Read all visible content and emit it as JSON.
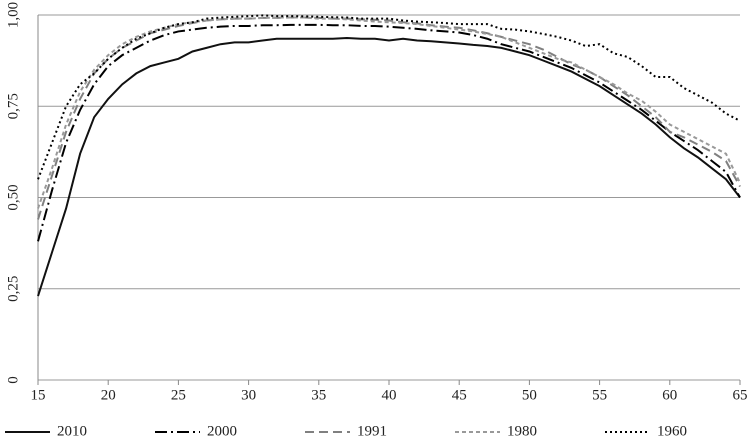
{
  "chart_data": {
    "type": "line",
    "x": [
      15,
      16,
      17,
      18,
      19,
      20,
      21,
      22,
      23,
      24,
      25,
      26,
      27,
      28,
      29,
      30,
      31,
      32,
      33,
      34,
      35,
      36,
      37,
      38,
      39,
      40,
      41,
      42,
      43,
      44,
      45,
      46,
      47,
      48,
      49,
      50,
      51,
      52,
      53,
      54,
      55,
      56,
      57,
      58,
      59,
      60,
      61,
      62,
      63,
      64,
      65
    ],
    "xlim": [
      15,
      65
    ],
    "xticks": [
      15,
      20,
      25,
      30,
      35,
      40,
      45,
      50,
      55,
      60,
      65
    ],
    "ylim": [
      0,
      1
    ],
    "yticks": [
      0,
      {
        "value": 0.25,
        "label": "0,25"
      },
      {
        "value": 0.5,
        "label": "0,50"
      },
      {
        "value": 0.75,
        "label": "0,75"
      },
      {
        "value": 1,
        "label": "1,00"
      }
    ],
    "grid": true,
    "legend": "bottom",
    "series": [
      {
        "name": "2010",
        "color": "#111111",
        "style": "solid",
        "values": [
          0.23,
          0.35,
          0.47,
          0.62,
          0.72,
          0.77,
          0.81,
          0.84,
          0.86,
          0.87,
          0.88,
          0.9,
          0.91,
          0.92,
          0.925,
          0.925,
          0.93,
          0.935,
          0.935,
          0.935,
          0.935,
          0.935,
          0.937,
          0.935,
          0.935,
          0.93,
          0.935,
          0.93,
          0.928,
          0.925,
          0.922,
          0.918,
          0.915,
          0.91,
          0.9,
          0.89,
          0.875,
          0.86,
          0.845,
          0.825,
          0.805,
          0.78,
          0.755,
          0.73,
          0.7,
          0.665,
          0.635,
          0.61,
          0.58,
          0.55,
          0.5
        ]
      },
      {
        "name": "2000",
        "color": "#000000",
        "style": "dash-dot",
        "values": [
          0.38,
          0.52,
          0.65,
          0.74,
          0.81,
          0.86,
          0.89,
          0.91,
          0.93,
          0.945,
          0.955,
          0.96,
          0.965,
          0.968,
          0.97,
          0.97,
          0.972,
          0.972,
          0.973,
          0.973,
          0.973,
          0.972,
          0.972,
          0.97,
          0.97,
          0.968,
          0.965,
          0.962,
          0.958,
          0.955,
          0.952,
          0.945,
          0.935,
          0.92,
          0.91,
          0.9,
          0.885,
          0.87,
          0.855,
          0.835,
          0.815,
          0.79,
          0.765,
          0.74,
          0.71,
          0.68,
          0.655,
          0.63,
          0.6,
          0.57,
          0.5
        ]
      },
      {
        "name": "1991",
        "color": "#808080",
        "style": "dash",
        "values": [
          0.44,
          0.56,
          0.68,
          0.77,
          0.84,
          0.88,
          0.91,
          0.93,
          0.95,
          0.96,
          0.97,
          0.978,
          0.985,
          0.988,
          0.99,
          0.99,
          0.992,
          0.992,
          0.993,
          0.993,
          0.992,
          0.99,
          0.99,
          0.988,
          0.987,
          0.985,
          0.98,
          0.977,
          0.972,
          0.968,
          0.965,
          0.958,
          0.95,
          0.94,
          0.93,
          0.92,
          0.905,
          0.885,
          0.865,
          0.85,
          0.83,
          0.805,
          0.78,
          0.75,
          0.72,
          0.68,
          0.665,
          0.645,
          0.625,
          0.6,
          0.53
        ]
      },
      {
        "name": "1980",
        "color": "#999999",
        "style": "short-dash",
        "values": [
          0.47,
          0.58,
          0.7,
          0.79,
          0.85,
          0.89,
          0.92,
          0.94,
          0.955,
          0.965,
          0.975,
          0.98,
          0.985,
          0.988,
          0.99,
          0.99,
          0.992,
          0.993,
          0.993,
          0.993,
          0.99,
          0.99,
          0.988,
          0.985,
          0.982,
          0.98,
          0.978,
          0.975,
          0.97,
          0.965,
          0.96,
          0.955,
          0.948,
          0.94,
          0.925,
          0.91,
          0.895,
          0.88,
          0.87,
          0.85,
          0.83,
          0.81,
          0.785,
          0.765,
          0.735,
          0.7,
          0.68,
          0.66,
          0.64,
          0.62,
          0.54
        ]
      },
      {
        "name": "1960",
        "color": "#000000",
        "style": "dot",
        "values": [
          0.55,
          0.65,
          0.75,
          0.81,
          0.84,
          0.88,
          0.91,
          0.935,
          0.95,
          0.965,
          0.975,
          0.98,
          0.99,
          0.993,
          0.995,
          0.997,
          0.999,
          0.997,
          0.997,
          0.996,
          0.995,
          0.994,
          0.993,
          0.99,
          0.99,
          0.99,
          0.985,
          0.982,
          0.98,
          0.978,
          0.975,
          0.975,
          0.975,
          0.962,
          0.96,
          0.955,
          0.948,
          0.94,
          0.93,
          0.915,
          0.92,
          0.895,
          0.885,
          0.86,
          0.83,
          0.83,
          0.8,
          0.78,
          0.76,
          0.73,
          0.71
        ]
      }
    ]
  }
}
